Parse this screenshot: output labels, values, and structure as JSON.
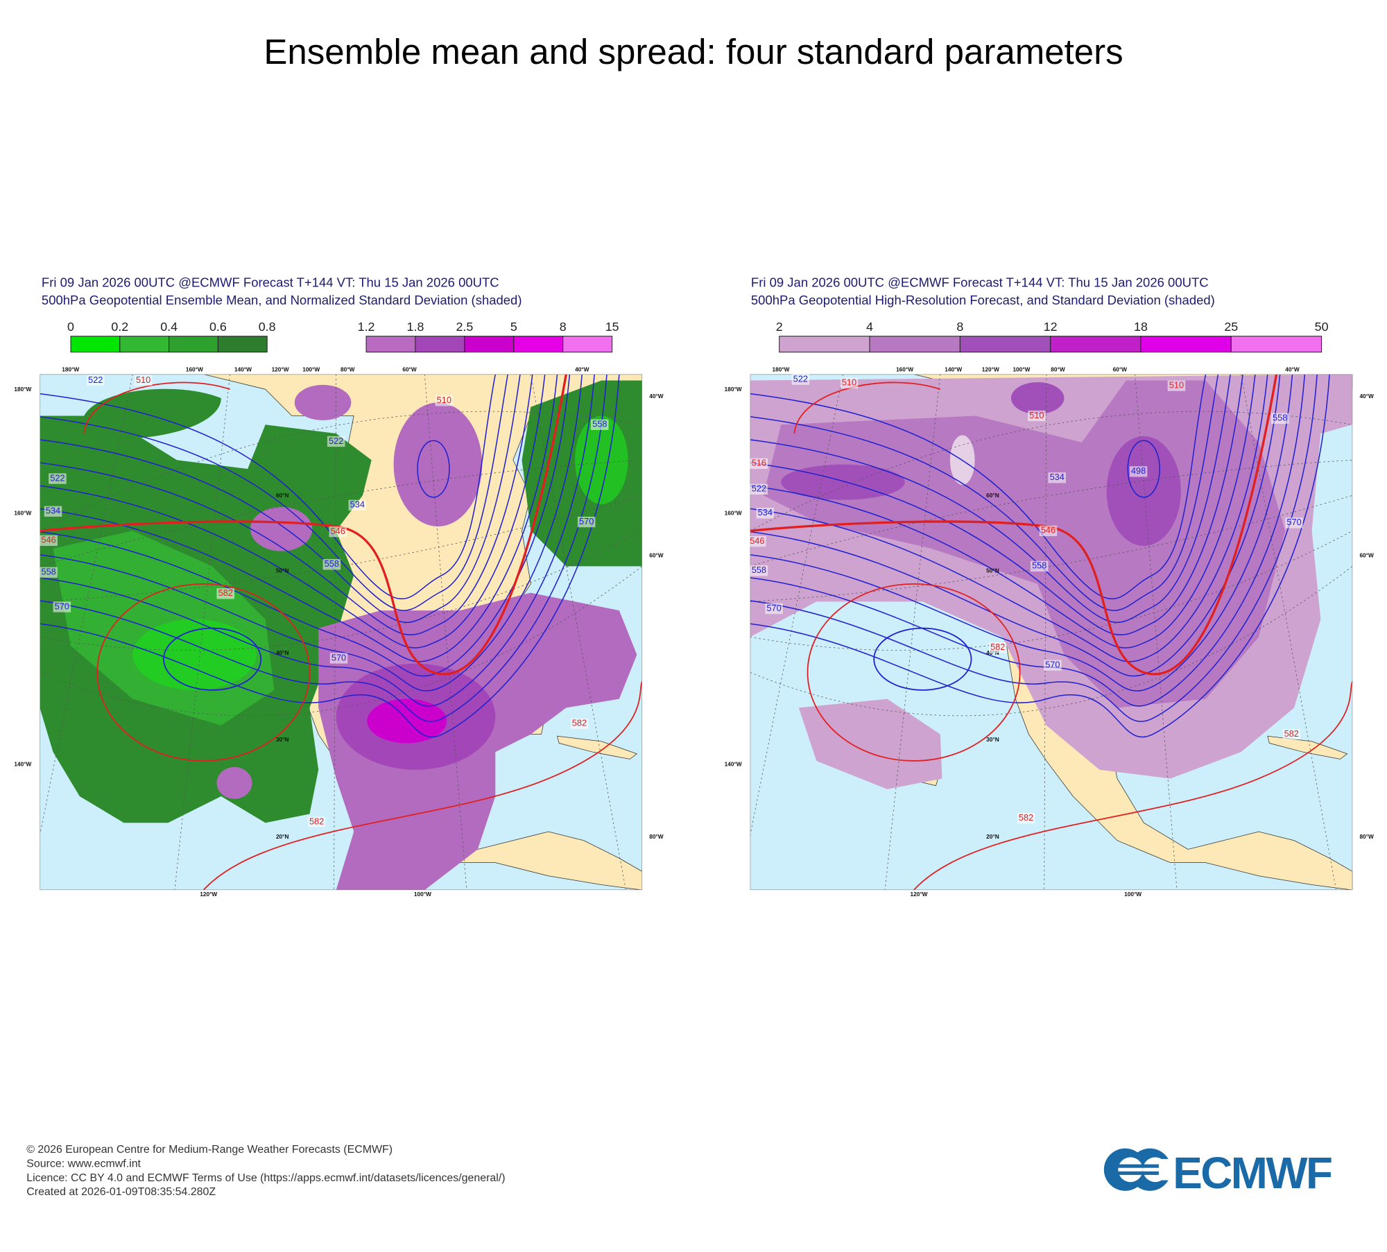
{
  "title": "Ensemble mean and spread: four standard parameters",
  "panels": [
    {
      "header": [
        "Fri 09 Jan 2026 00UTC @ECMWF Forecast T+144 VT: Thu 15 Jan 2026 00UTC",
        "500hPa Geopotential Ensemble Mean, and Normalized Standard Deviation (shaded)"
      ],
      "colorbars": [
        {
          "labels": [
            "0",
            "0.2",
            "0.4",
            "0.6",
            "0.8"
          ],
          "colors": [
            "#00e600",
            "#33b833",
            "#2ea02e",
            "#2e7d2e"
          ]
        },
        {
          "labels": [
            "1.2",
            "1.8",
            "2.5",
            "5",
            "8",
            "15"
          ],
          "colors": [
            "#b86bc0",
            "#a347b8",
            "#cc00cc",
            "#e600e6",
            "#f070f0"
          ]
        }
      ],
      "contour_labels": [
        "522",
        "510",
        "510",
        "522",
        "534",
        "546",
        "558",
        "570",
        "582",
        "522",
        "534",
        "546",
        "558",
        "570",
        "582",
        "582",
        "558",
        "570"
      ],
      "grid_labels": [
        "180°W",
        "160°W",
        "140°W",
        "120°W",
        "100°W",
        "80°W",
        "60°W",
        "40°W",
        "180°W",
        "160°W",
        "140°W",
        "40°W",
        "60°W",
        "80°W",
        "120°W",
        "100°W",
        "60°N",
        "50°N",
        "40°N",
        "30°N",
        "20°N"
      ]
    },
    {
      "header": [
        "Fri 09 Jan 2026 00UTC @ECMWF Forecast T+144 VT: Thu 15 Jan 2026 00UTC",
        "500hPa Geopotential High-Resolution Forecast, and Standard Deviation (shaded)"
      ],
      "colorbars": [
        {
          "labels": [
            "2",
            "4",
            "8",
            "12",
            "18",
            "25",
            "50"
          ],
          "colors": [
            "#cfa3cf",
            "#b77ac2",
            "#a050b8",
            "#c020c8",
            "#e000e8",
            "#f070f0"
          ]
        }
      ],
      "contour_labels": [
        "522",
        "510",
        "510",
        "516",
        "522",
        "534",
        "546",
        "558",
        "570",
        "510",
        "534",
        "546",
        "558",
        "570",
        "498",
        "558",
        "570",
        "582",
        "582",
        "582"
      ],
      "grid_labels": [
        "180°W",
        "160°W",
        "140°W",
        "120°W",
        "100°W",
        "80°W",
        "60°W",
        "40°W",
        "180°W",
        "160°W",
        "140°W",
        "40°W",
        "60°W",
        "80°W",
        "120°W",
        "100°W",
        "60°N",
        "50°N",
        "40°N",
        "30°N",
        "20°N"
      ]
    }
  ],
  "footer": [
    "© 2026 European Centre for Medium-Range Weather Forecasts (ECMWF)",
    "Source: www.ecmwf.int",
    "Licence: CC BY 4.0 and ECMWF Terms of Use (https://apps.ecmwf.int/datasets/licences/general/)",
    "Created at 2026-01-09T08:35:54.280Z"
  ],
  "logo": "ECMWF"
}
